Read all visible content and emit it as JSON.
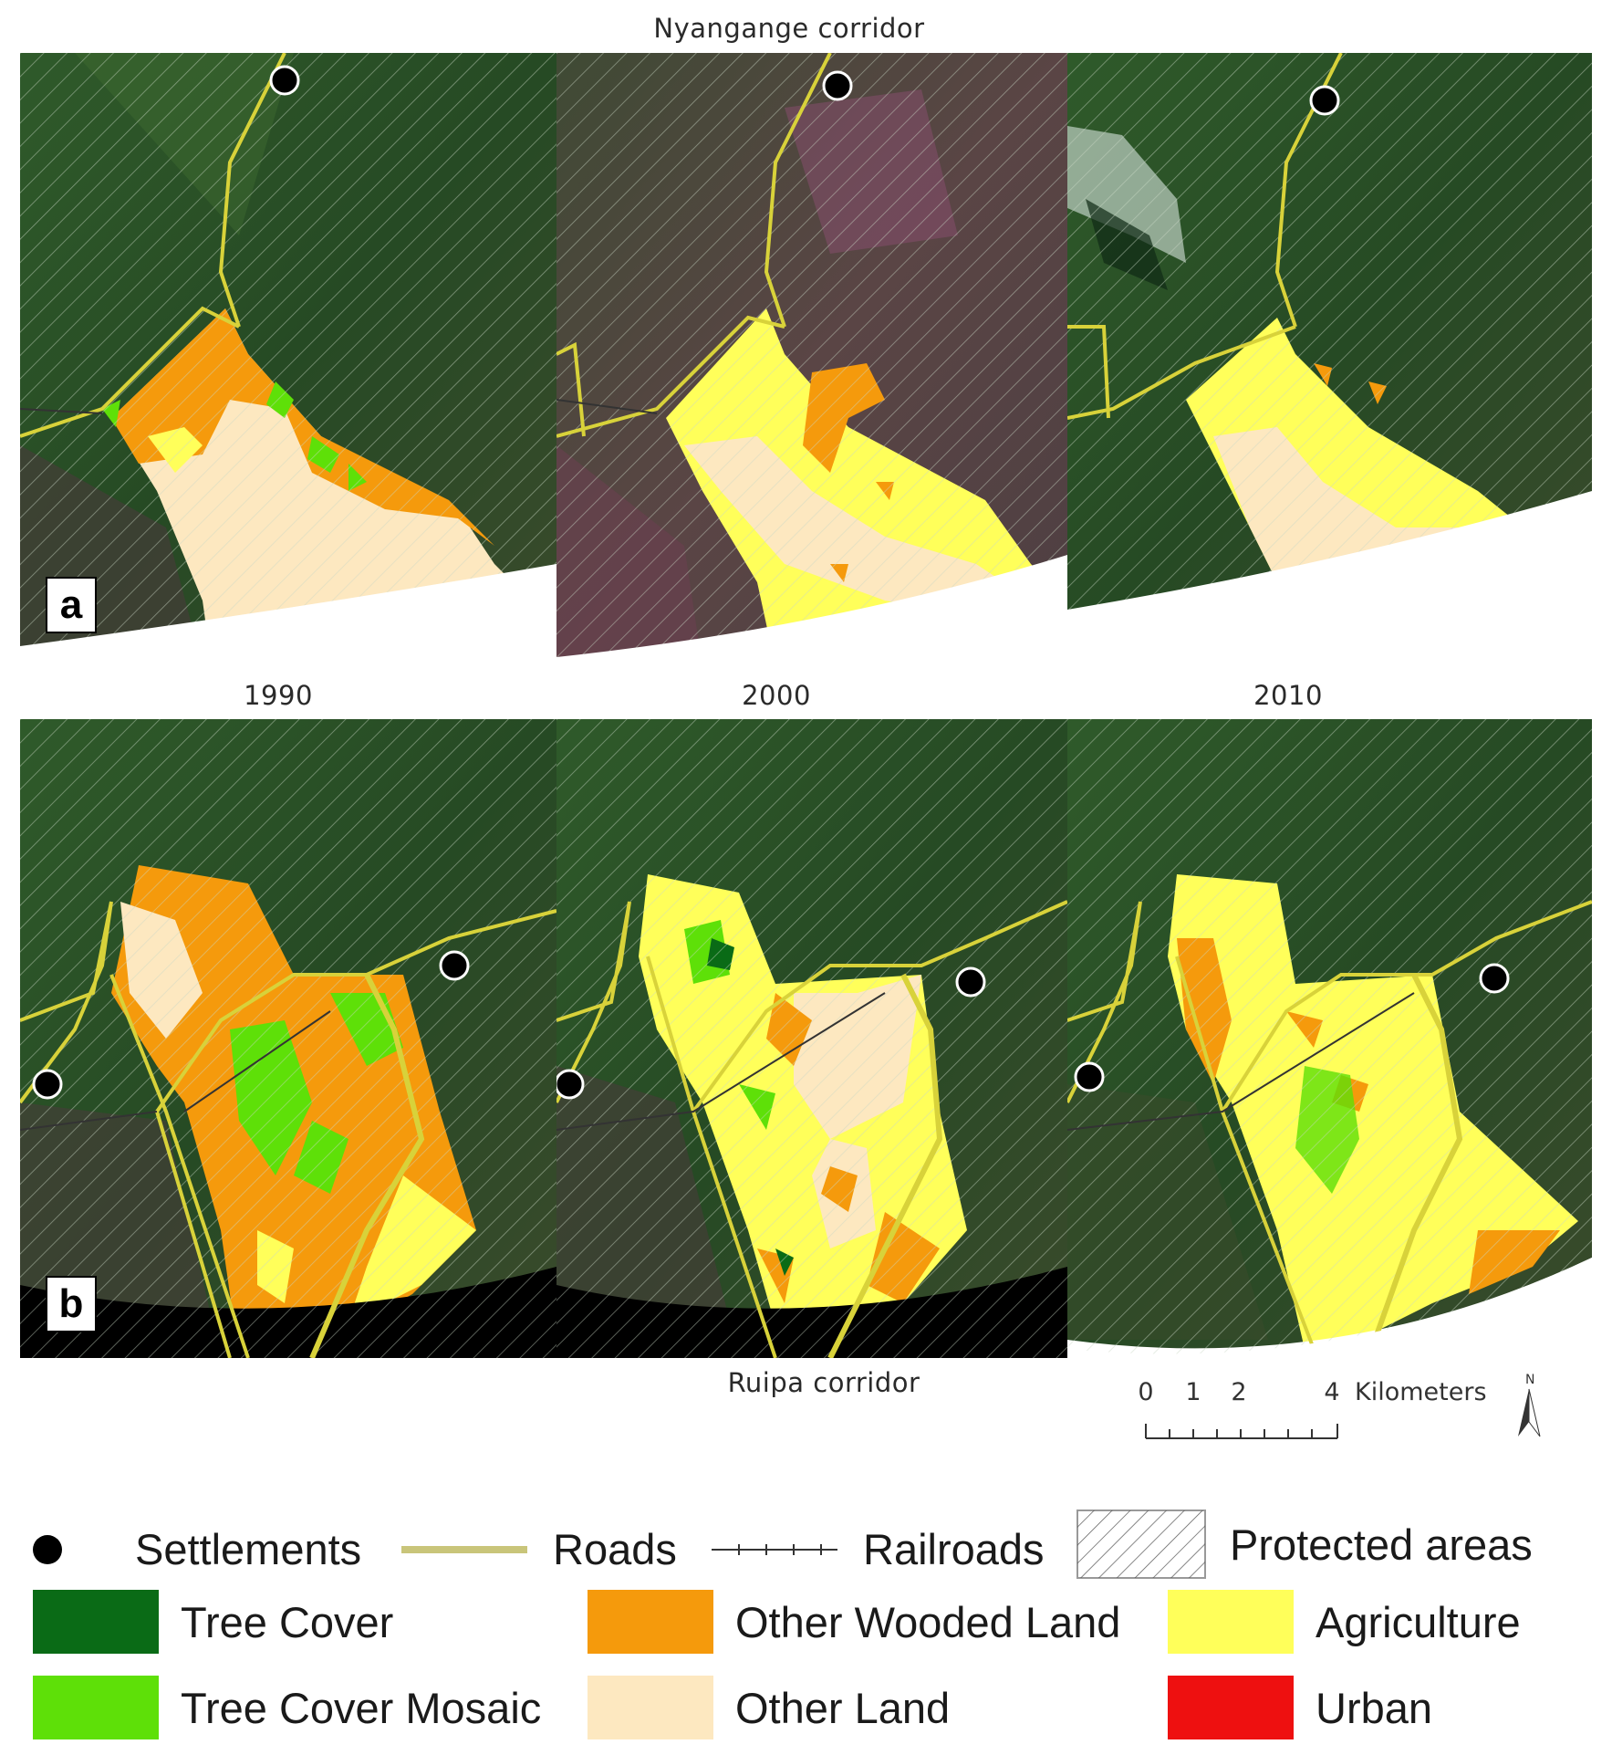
{
  "titles": {
    "top": "Nyangange corridor",
    "year_1990": "1990",
    "year_2000": "2000",
    "year_2010": "2010",
    "bottom": "Ruipa corridor"
  },
  "panel_labels": {
    "a": "a",
    "b": "b"
  },
  "scale_bar": {
    "ticks": [
      "0",
      "1",
      "2",
      "4"
    ],
    "unit": "Kilometers",
    "north": "N"
  },
  "legend": {
    "settlements": "Settlements",
    "roads": "Roads",
    "railroads": "Railroads",
    "protected_areas": "Protected areas",
    "classes": [
      {
        "label": "Tree Cover",
        "color": "#0a6b16"
      },
      {
        "label": "Other Wooded Land",
        "color": "#f59a0c"
      },
      {
        "label": "Agriculture",
        "color": "#ffff5a"
      },
      {
        "label": "Tree Cover Mosaic",
        "color": "#5ee008"
      },
      {
        "label": "Other Land",
        "color": "#fde8c0"
      },
      {
        "label": "Urban",
        "color": "#ee1010"
      }
    ]
  },
  "colors": {
    "road": "#d8d23a",
    "settlement": "#000000",
    "imagery_dark": "#2d4a2a",
    "imagery_mauve": "#5e4548"
  }
}
